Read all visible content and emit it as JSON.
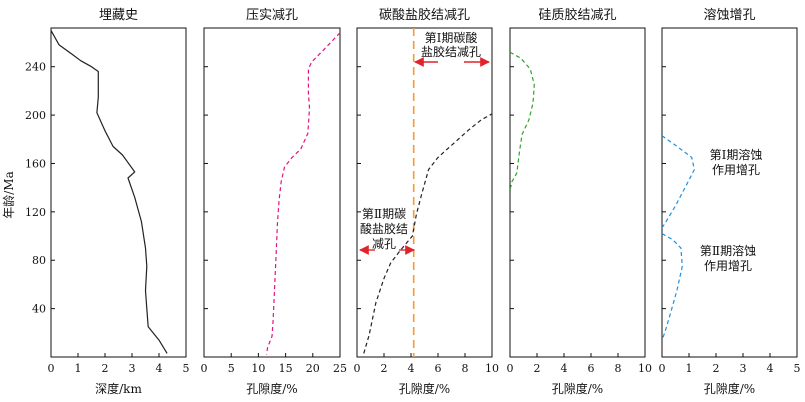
{
  "figure": {
    "y_axis_label": "年龄/Ma",
    "y_ticks": [
      40,
      80,
      120,
      160,
      200,
      240
    ]
  },
  "chart_data": [
    {
      "type": "line",
      "title": "埋藏史",
      "xlabel": "深度/km",
      "ylabel": "年龄/Ma",
      "xlim": [
        0,
        5
      ],
      "ylim": [
        0,
        272
      ],
      "x_ticks": [
        "0",
        "1",
        "2",
        "3",
        "4",
        "5"
      ],
      "grid": false,
      "series": [
        {
          "color": "#222222",
          "style": "solid",
          "points": [
            [
              0,
              270
            ],
            [
              0.3,
              258
            ],
            [
              0.8,
              250
            ],
            [
              1.1,
              245
            ],
            [
              1.5,
              240
            ],
            [
              1.75,
              236
            ],
            [
              1.75,
              215
            ],
            [
              1.7,
              202
            ],
            [
              2.0,
              187
            ],
            [
              2.3,
              174
            ],
            [
              2.65,
              167
            ],
            [
              3.1,
              153
            ],
            [
              2.85,
              148
            ],
            [
              3.1,
              132
            ],
            [
              3.35,
              112
            ],
            [
              3.5,
              90
            ],
            [
              3.55,
              75
            ],
            [
              3.5,
              55
            ],
            [
              3.55,
              40
            ],
            [
              3.6,
              25
            ],
            [
              4.0,
              14
            ],
            [
              4.3,
              3
            ]
          ]
        }
      ]
    },
    {
      "type": "line",
      "title": "压实减孔",
      "xlabel": "孔隙度/%",
      "xlim": [
        0,
        25
      ],
      "ylim": [
        0,
        272
      ],
      "x_ticks": [
        "0",
        "5",
        "10",
        "15",
        "20",
        "25"
      ],
      "grid": false,
      "series": [
        {
          "color": "#e0157f",
          "style": "dashed",
          "points": [
            [
              25,
              268
            ],
            [
              22,
              254
            ],
            [
              19.8,
              244
            ],
            [
              19.2,
              238
            ],
            [
              19.2,
              218
            ],
            [
              19.4,
              206
            ],
            [
              19.1,
              185
            ],
            [
              17.8,
              172
            ],
            [
              16.2,
              165
            ],
            [
              14.8,
              157
            ],
            [
              14.2,
              145
            ],
            [
              13.8,
              130
            ],
            [
              13.5,
              110
            ],
            [
              13.3,
              90
            ],
            [
              13.1,
              70
            ],
            [
              12.9,
              50
            ],
            [
              12.7,
              30
            ],
            [
              12.5,
              17
            ],
            [
              11.7,
              8
            ],
            [
              11.5,
              2
            ]
          ]
        }
      ]
    },
    {
      "type": "line",
      "title": "碳酸盐胶结减孔",
      "xlabel": "孔隙度/%",
      "xlim": [
        0,
        10
      ],
      "ylim": [
        0,
        272
      ],
      "x_ticks": [
        "0",
        "2",
        "4",
        "6",
        "8",
        "10"
      ],
      "grid": false,
      "series": [
        {
          "color": "#222222",
          "style": "dashed",
          "points": [
            [
              0.5,
              3
            ],
            [
              0.9,
              18
            ],
            [
              1.4,
              45
            ],
            [
              2.0,
              65
            ],
            [
              2.5,
              78
            ],
            [
              3.2,
              88
            ],
            [
              4.1,
              100
            ],
            [
              4.4,
              118
            ],
            [
              4.8,
              135
            ],
            [
              5.3,
              155
            ],
            [
              6.0,
              165
            ],
            [
              7.0,
              175
            ],
            [
              8.3,
              188
            ],
            [
              9.2,
              196
            ],
            [
              10,
              201
            ]
          ]
        }
      ],
      "reference_line": {
        "x": 4.2,
        "color": "#f39a3a",
        "style": "dashed"
      },
      "annotations": [
        {
          "lines": [
            "第Ⅰ期碳酸",
            "盐胶结减孔"
          ],
          "arrow": "both-outward",
          "span": [
            4.2,
            10
          ]
        },
        {
          "lines": [
            "第Ⅱ期碳",
            "酸盐胶结",
            "减孔"
          ],
          "arrow": "both-outward",
          "span": [
            0,
            4.2
          ]
        }
      ]
    },
    {
      "type": "line",
      "title": "硅质胶结减孔",
      "xlabel": "孔隙度/%",
      "xlim": [
        0,
        10
      ],
      "ylim": [
        0,
        272
      ],
      "x_ticks": [
        "0",
        "2",
        "4",
        "6",
        "8",
        "10"
      ],
      "grid": false,
      "series": [
        {
          "color": "#33a02c",
          "style": "dashed",
          "points": [
            [
              0,
              252
            ],
            [
              0.8,
              247
            ],
            [
              1.5,
              238
            ],
            [
              1.8,
              225
            ],
            [
              1.7,
              210
            ],
            [
              1.4,
              196
            ],
            [
              0.9,
              184
            ],
            [
              0.7,
              170
            ],
            [
              0.5,
              152
            ],
            [
              0.15,
              145
            ],
            [
              0,
              138
            ]
          ]
        }
      ]
    },
    {
      "type": "line",
      "title": "溶蚀增孔",
      "xlabel": "孔隙度/%",
      "xlim": [
        0,
        5
      ],
      "ylim": [
        0,
        272
      ],
      "x_ticks": [
        "0",
        "1",
        "2",
        "3",
        "4",
        "5"
      ],
      "grid": false,
      "series": [
        {
          "color": "#1e90e0",
          "style": "dashed",
          "points": [
            [
              0,
              183
            ],
            [
              0.5,
              175
            ],
            [
              1.1,
              165
            ],
            [
              1.2,
              155
            ],
            [
              0.9,
              142
            ],
            [
              0.5,
              125
            ],
            [
              0.1,
              110
            ],
            [
              0,
              107
            ]
          ]
        },
        {
          "color": "#1e90e0",
          "style": "dashed",
          "points": [
            [
              0,
              102
            ],
            [
              0.4,
              97
            ],
            [
              0.7,
              90
            ],
            [
              0.75,
              75
            ],
            [
              0.55,
              55
            ],
            [
              0.3,
              35
            ],
            [
              0.1,
              20
            ],
            [
              0,
              14
            ]
          ]
        }
      ],
      "annotations": [
        {
          "lines": [
            "第Ⅰ期溶蚀",
            "作用增孔"
          ]
        },
        {
          "lines": [
            "第Ⅱ期溶蚀",
            "作用增孔"
          ]
        }
      ]
    }
  ]
}
